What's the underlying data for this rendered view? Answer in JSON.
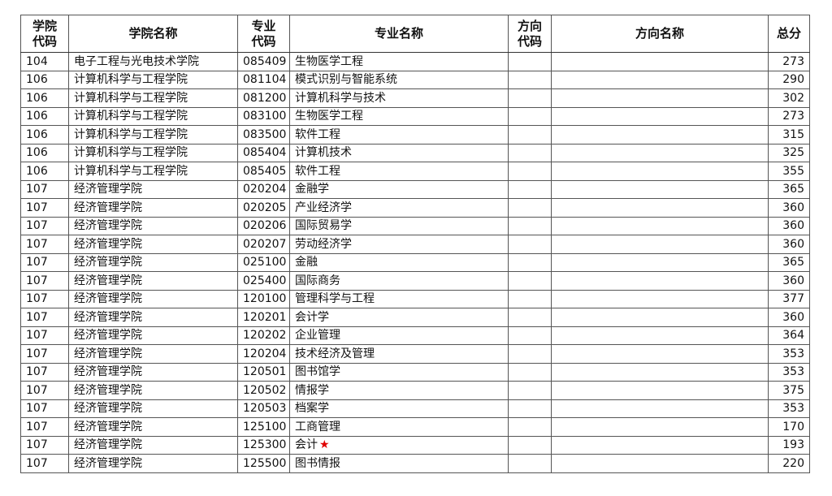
{
  "headers": [
    "学院\n代码",
    "学院名称",
    "专业\n代码",
    "专业名称",
    "方向\n代码",
    "方向名称",
    "总分"
  ],
  "star_color": "#e00000",
  "rows": [
    {
      "college_code": "104",
      "college_name": "电子工程与光电技术学院",
      "major_code": "085409",
      "major_name": "生物医学工程",
      "dir_code": "",
      "dir_name": "",
      "total": "273"
    },
    {
      "college_code": "106",
      "college_name": "计算机科学与工程学院",
      "major_code": "081104",
      "major_name": "模式识别与智能系统",
      "dir_code": "",
      "dir_name": "",
      "total": "290"
    },
    {
      "college_code": "106",
      "college_name": "计算机科学与工程学院",
      "major_code": "081200",
      "major_name": "计算机科学与技术",
      "dir_code": "",
      "dir_name": "",
      "total": "302"
    },
    {
      "college_code": "106",
      "college_name": "计算机科学与工程学院",
      "major_code": "083100",
      "major_name": "生物医学工程",
      "dir_code": "",
      "dir_name": "",
      "total": "273"
    },
    {
      "college_code": "106",
      "college_name": "计算机科学与工程学院",
      "major_code": "083500",
      "major_name": "软件工程",
      "dir_code": "",
      "dir_name": "",
      "total": "315"
    },
    {
      "college_code": "106",
      "college_name": "计算机科学与工程学院",
      "major_code": "085404",
      "major_name": "计算机技术",
      "dir_code": "",
      "dir_name": "",
      "total": "325"
    },
    {
      "college_code": "106",
      "college_name": "计算机科学与工程学院",
      "major_code": "085405",
      "major_name": "软件工程",
      "dir_code": "",
      "dir_name": "",
      "total": "355"
    },
    {
      "college_code": "107",
      "college_name": "经济管理学院",
      "major_code": "020204",
      "major_name": "金融学",
      "dir_code": "",
      "dir_name": "",
      "total": "365"
    },
    {
      "college_code": "107",
      "college_name": "经济管理学院",
      "major_code": "020205",
      "major_name": "产业经济学",
      "dir_code": "",
      "dir_name": "",
      "total": "360"
    },
    {
      "college_code": "107",
      "college_name": "经济管理学院",
      "major_code": "020206",
      "major_name": "国际贸易学",
      "dir_code": "",
      "dir_name": "",
      "total": "360"
    },
    {
      "college_code": "107",
      "college_name": "经济管理学院",
      "major_code": "020207",
      "major_name": "劳动经济学",
      "dir_code": "",
      "dir_name": "",
      "total": "360"
    },
    {
      "college_code": "107",
      "college_name": "经济管理学院",
      "major_code": "025100",
      "major_name": "金融",
      "dir_code": "",
      "dir_name": "",
      "total": "365"
    },
    {
      "college_code": "107",
      "college_name": "经济管理学院",
      "major_code": "025400",
      "major_name": "国际商务",
      "dir_code": "",
      "dir_name": "",
      "total": "360"
    },
    {
      "college_code": "107",
      "college_name": "经济管理学院",
      "major_code": "120100",
      "major_name": "管理科学与工程",
      "dir_code": "",
      "dir_name": "",
      "total": "377"
    },
    {
      "college_code": "107",
      "college_name": "经济管理学院",
      "major_code": "120201",
      "major_name": "会计学",
      "dir_code": "",
      "dir_name": "",
      "total": "360"
    },
    {
      "college_code": "107",
      "college_name": "经济管理学院",
      "major_code": "120202",
      "major_name": "企业管理",
      "dir_code": "",
      "dir_name": "",
      "total": "364"
    },
    {
      "college_code": "107",
      "college_name": "经济管理学院",
      "major_code": "120204",
      "major_name": "技术经济及管理",
      "dir_code": "",
      "dir_name": "",
      "total": "353"
    },
    {
      "college_code": "107",
      "college_name": "经济管理学院",
      "major_code": "120501",
      "major_name": "图书馆学",
      "dir_code": "",
      "dir_name": "",
      "total": "353"
    },
    {
      "college_code": "107",
      "college_name": "经济管理学院",
      "major_code": "120502",
      "major_name": "情报学",
      "dir_code": "",
      "dir_name": "",
      "total": "375"
    },
    {
      "college_code": "107",
      "college_name": "经济管理学院",
      "major_code": "120503",
      "major_name": "档案学",
      "dir_code": "",
      "dir_name": "",
      "total": "353"
    },
    {
      "college_code": "107",
      "college_name": "经济管理学院",
      "major_code": "125100",
      "major_name": "工商管理",
      "dir_code": "",
      "dir_name": "",
      "total": "170"
    },
    {
      "college_code": "107",
      "college_name": "经济管理学院",
      "major_code": "125300",
      "major_name": "会计",
      "mark": "★",
      "dir_code": "",
      "dir_name": "",
      "total": "193"
    },
    {
      "college_code": "107",
      "college_name": "经济管理学院",
      "major_code": "125500",
      "major_name": "图书情报",
      "dir_code": "",
      "dir_name": "",
      "total": "220"
    }
  ]
}
